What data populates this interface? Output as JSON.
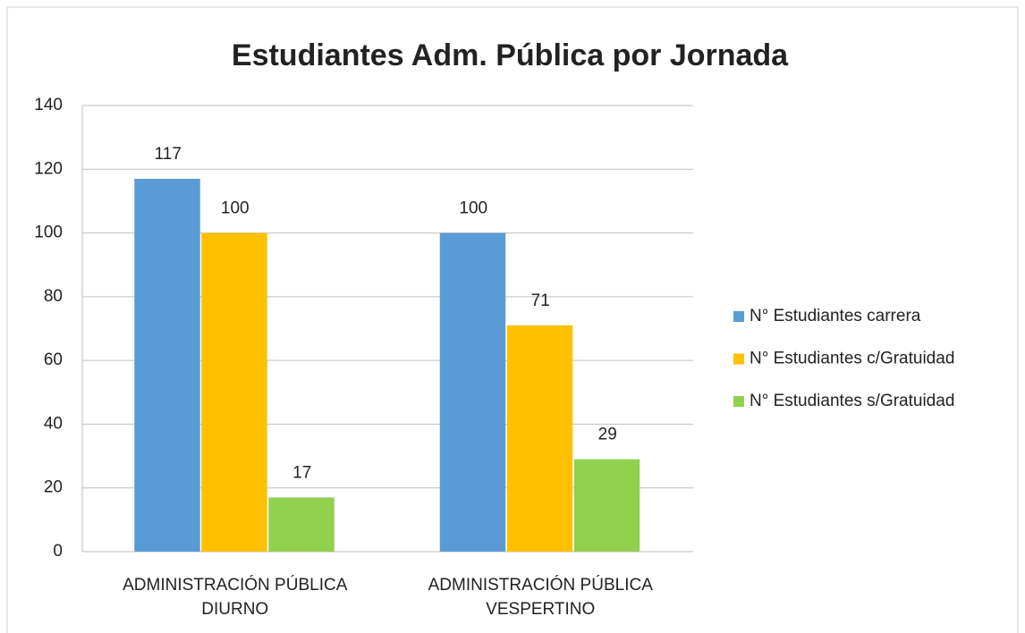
{
  "chart_data": {
    "type": "bar",
    "title": "Estudiantes Adm. Pública por Jornada",
    "categories": [
      "ADMINISTRACIÓN PÚBLICA DIURNO",
      "ADMINISTRACIÓN PÚBLICA VESPERTINO"
    ],
    "series": [
      {
        "name": "N° Estudiantes carrera",
        "color": "#5b9bd5",
        "values": [
          117,
          100
        ]
      },
      {
        "name": "N° Estudiantes c/Gratuidad",
        "color": "#ffc000",
        "values": [
          100,
          71
        ]
      },
      {
        "name": "N° Estudiantes s/Gratuidad",
        "color": "#92d050",
        "values": [
          17,
          29
        ]
      }
    ],
    "ylim": [
      0,
      140
    ],
    "yticks": [
      0,
      20,
      40,
      60,
      80,
      100,
      120,
      140
    ],
    "grid": true,
    "legend": "right"
  }
}
